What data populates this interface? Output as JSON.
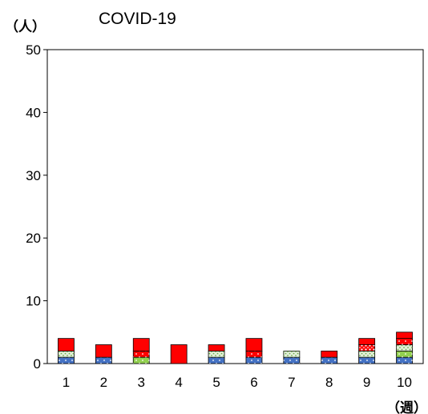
{
  "chart_data": {
    "type": "bar",
    "stacked": true,
    "title": "COVID-19",
    "ylabel": "（人）",
    "xlabel": "（週）",
    "categories": [
      "1",
      "2",
      "3",
      "4",
      "5",
      "6",
      "7",
      "8",
      "9",
      "10"
    ],
    "ylim": [
      0,
      50
    ],
    "yticks": [
      0,
      10,
      20,
      30,
      40,
      50
    ],
    "grid": false,
    "legend": "none",
    "series": [
      {
        "color": "#4472c4",
        "pattern": "dots-white",
        "values": [
          1,
          1,
          0,
          0,
          1,
          1,
          1,
          1,
          1,
          1
        ]
      },
      {
        "color": "#92d050",
        "pattern": "dots-white",
        "values": [
          0,
          0,
          1,
          0,
          0,
          0,
          0,
          0,
          0,
          1
        ]
      },
      {
        "color": "#e2efda",
        "pattern": "dots-green",
        "values": [
          1,
          0,
          0,
          0,
          1,
          0,
          1,
          0,
          1,
          1
        ]
      },
      {
        "color": "#ff0000",
        "pattern": "dots-white",
        "values": [
          0,
          0,
          1,
          0,
          0,
          1,
          0,
          0,
          0,
          1
        ]
      },
      {
        "color": "#ff0000",
        "pattern": "dots-white-dense",
        "values": [
          0,
          0,
          0,
          0,
          0,
          0,
          0,
          0,
          1,
          0
        ]
      },
      {
        "color": "#ff0000",
        "pattern": "solid",
        "values": [
          2,
          2,
          2,
          3,
          1,
          2,
          0,
          1,
          1,
          1
        ]
      }
    ]
  }
}
